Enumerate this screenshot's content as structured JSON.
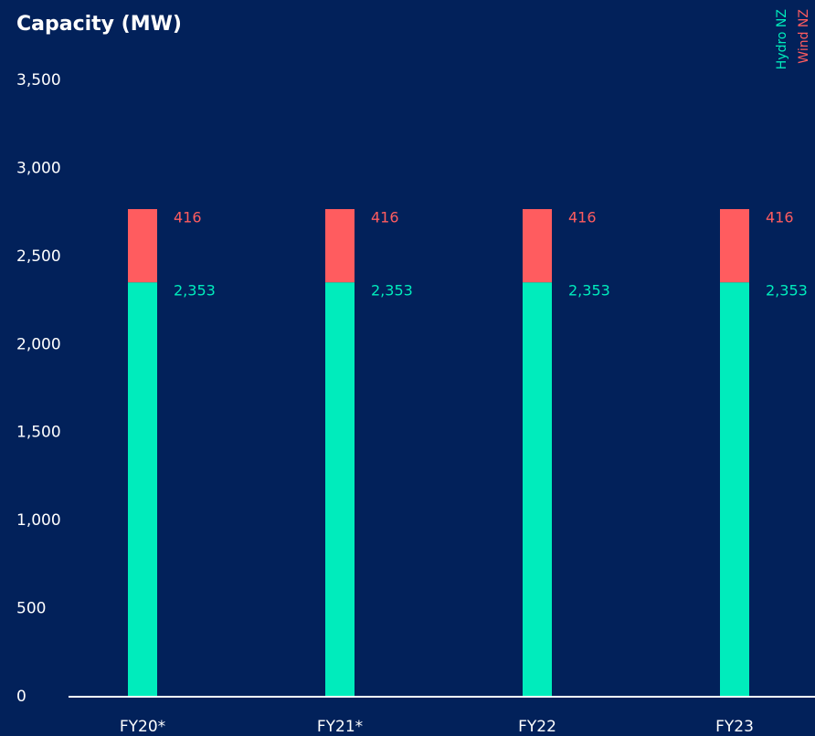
{
  "chart_data": {
    "type": "stacked_bar",
    "title": "Capacity (MW)",
    "categories": [
      "FY20*",
      "FY21*",
      "FY22",
      "FY23"
    ],
    "series": [
      {
        "name": "Hydro NZ",
        "color": "#00ecbc",
        "values": [
          2353,
          2353,
          2353,
          2353
        ],
        "value_labels": [
          "2,353",
          "2,353",
          "2,353",
          "2,353"
        ]
      },
      {
        "name": "Wind NZ",
        "color": "#ff5c5f",
        "values": [
          416,
          416,
          416,
          416
        ],
        "value_labels": [
          "416",
          "416",
          "416",
          "416"
        ]
      }
    ],
    "ylim": [
      0,
      3500
    ],
    "yticks": [
      0,
      500,
      {
        "value": 1000,
        "label": "1,000"
      },
      {
        "value": 1500,
        "label": "1,500"
      },
      {
        "value": 2000,
        "label": "2,000"
      },
      {
        "value": 2500,
        "label": "2,500"
      },
      {
        "value": 3000,
        "label": "3,000"
      },
      {
        "value": 3500,
        "label": "3,500"
      }
    ],
    "grid": false,
    "legend": "top-right"
  }
}
